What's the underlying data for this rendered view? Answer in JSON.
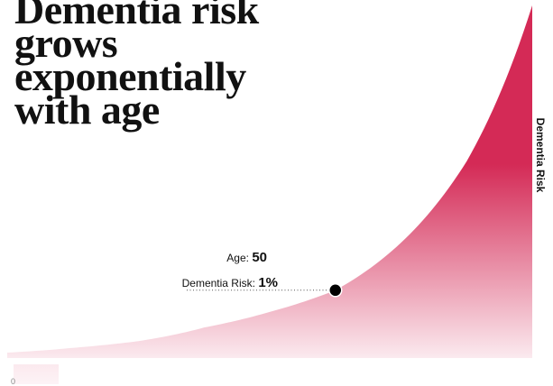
{
  "header": {
    "title": "Dementia risk grows exponentially with age"
  },
  "chart_data": {
    "type": "area",
    "title": "Dementia risk grows exponentially with age",
    "ylabel": "Dementia Risk",
    "xlabel": "",
    "colors": {
      "fill_top": "#d42a56",
      "fill_bottom": "#fbeaef",
      "marker": "#000000"
    },
    "highlight": {
      "age_label": "Age:",
      "age_value": "50",
      "risk_label": "Dementia Risk:",
      "risk_value": "1%",
      "x": 50,
      "y": 1
    },
    "series": [
      {
        "x": [
          0,
          10,
          20,
          30,
          40,
          50,
          60,
          70,
          80
        ],
        "y": [
          0.08,
          0.15,
          0.25,
          0.45,
          0.68,
          1.0,
          1.7,
          2.9,
          5.2
        ]
      }
    ],
    "y_tick_visible": "0"
  }
}
